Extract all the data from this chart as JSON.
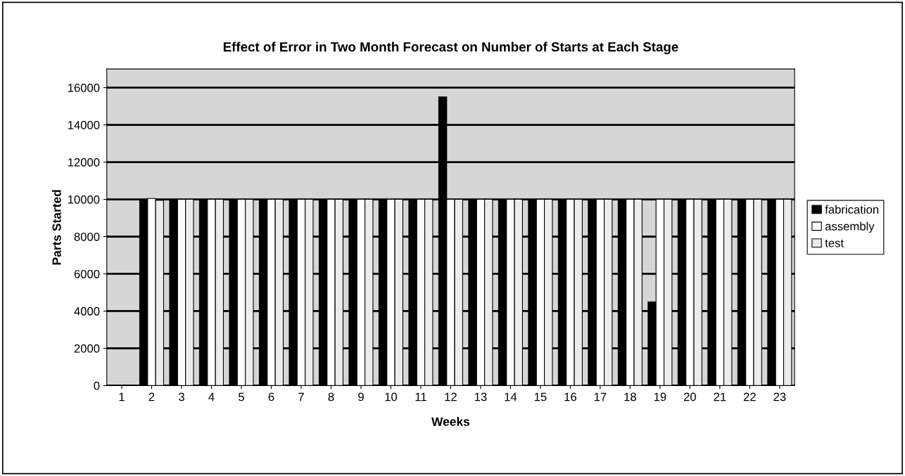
{
  "chart_data": {
    "type": "bar",
    "title": "Effect of Error in Two Month Forecast on Number of Starts at Each Stage",
    "xlabel": "Weeks",
    "ylabel": "Parts Started",
    "categories": [
      "1",
      "2",
      "3",
      "4",
      "5",
      "6",
      "7",
      "8",
      "9",
      "10",
      "11",
      "12",
      "13",
      "14",
      "15",
      "16",
      "17",
      "18",
      "19",
      "20",
      "21",
      "22",
      "23"
    ],
    "series": [
      {
        "name": "fabrication",
        "color": "#000000",
        "values": [
          null,
          10000,
          10000,
          10000,
          10000,
          10000,
          10000,
          10000,
          10000,
          10000,
          10000,
          15500,
          10000,
          10000,
          10000,
          10000,
          10000,
          10000,
          4500,
          10000,
          10000,
          10000,
          10000
        ]
      },
      {
        "name": "assembly",
        "color": "#ffffff",
        "values": [
          null,
          10050,
          10000,
          10000,
          10000,
          10000,
          10000,
          10000,
          10000,
          10000,
          10000,
          10000,
          10000,
          10000,
          10000,
          10000,
          10000,
          10000,
          10000,
          10000,
          10000,
          10000,
          10000
        ]
      },
      {
        "name": "test",
        "color": "#ececec",
        "values": [
          null,
          9950,
          10000,
          10000,
          10000,
          10000,
          10000,
          10000,
          10000,
          10000,
          10000,
          10000,
          10000,
          10000,
          10000,
          10000,
          10000,
          10000,
          10000,
          10000,
          10000,
          10000,
          10000
        ]
      }
    ],
    "ylim": [
      0,
      17000
    ],
    "yticks": [
      0,
      2000,
      4000,
      6000,
      8000,
      10000,
      12000,
      14000,
      16000
    ],
    "grid": "y",
    "legend": "right"
  }
}
